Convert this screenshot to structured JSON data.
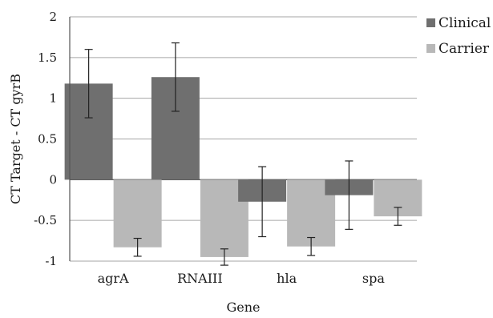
{
  "chart_data": {
    "type": "bar",
    "title": "",
    "xlabel": "Gene",
    "ylabel": "CT Target - CT gyrB",
    "ylim": [
      -1,
      2
    ],
    "yticks": [
      2,
      1.5,
      1,
      0.5,
      0,
      -0.5,
      -1
    ],
    "ytick_labels": [
      "2",
      "1.5",
      "1",
      "0.5",
      "0",
      "-0.5",
      "-1"
    ],
    "grid": true,
    "legend_position": "top-right",
    "categories": [
      "agrA",
      "RNAIII",
      "hla",
      "spa"
    ],
    "series": [
      {
        "name": "Clinical",
        "color": "#6f6f6f",
        "values": [
          1.18,
          1.26,
          -0.27,
          -0.19
        ],
        "error": [
          0.42,
          0.42,
          0.43,
          0.42
        ]
      },
      {
        "name": "Carrier",
        "color": "#b8b8b8",
        "values": [
          -0.83,
          -0.95,
          -0.82,
          -0.45
        ],
        "error": [
          0.11,
          0.1,
          0.11,
          0.11
        ]
      }
    ]
  }
}
